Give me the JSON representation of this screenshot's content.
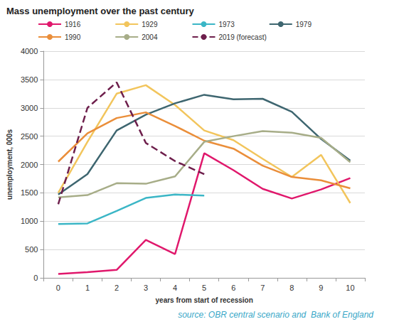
{
  "chart_data": {
    "type": "line",
    "title": "Mass unemployment over the past century",
    "x_label": "years from start of recession",
    "y_label": "unemployment, 000s",
    "source": "source: OBR central scenario and  Bank of England",
    "categories": [
      "0",
      "1",
      "2",
      "3",
      "4",
      "5",
      "6",
      "7",
      "8",
      "9",
      "10"
    ],
    "ylim": [
      0,
      4000
    ],
    "yticks": [
      0,
      500,
      1000,
      1500,
      2000,
      2500,
      3000,
      3500,
      4000
    ],
    "grid": true,
    "legend": "top",
    "series": [
      {
        "name": "1916",
        "color": "#e0186c",
        "line_style": "solid",
        "values": [
          70,
          100,
          140,
          670,
          420,
          2200,
          1900,
          1570,
          1400,
          1560,
          1760
        ]
      },
      {
        "name": "1929",
        "color": "#f2c55c",
        "line_style": "solid",
        "values": [
          1500,
          2400,
          3250,
          3400,
          3050,
          2600,
          2430,
          2100,
          1780,
          2170,
          1320
        ]
      },
      {
        "name": "1973",
        "color": "#3bb6c6",
        "line_style": "solid",
        "values": [
          950,
          960,
          1180,
          1410,
          1470,
          1450,
          null,
          null,
          null,
          null,
          null
        ]
      },
      {
        "name": "1979",
        "color": "#3e6670",
        "line_style": "solid",
        "values": [
          1470,
          1830,
          2600,
          2880,
          3080,
          3230,
          3150,
          3160,
          2930,
          2450,
          2070
        ]
      },
      {
        "name": "1990",
        "color": "#ea8e3a",
        "line_style": "solid",
        "values": [
          2050,
          2550,
          2820,
          2920,
          2680,
          2420,
          2280,
          1980,
          1780,
          1720,
          1580
        ]
      },
      {
        "name": "2004",
        "color": "#a7ad88",
        "line_style": "solid",
        "values": [
          1420,
          1460,
          1670,
          1660,
          1790,
          2400,
          2500,
          2590,
          2560,
          2470,
          2040
        ]
      },
      {
        "name": "2019 (forecast)",
        "color": "#6e1f4c",
        "line_style": "dashed",
        "values": [
          1300,
          3000,
          3450,
          2380,
          2060,
          1830,
          null,
          null,
          null,
          null,
          null
        ]
      }
    ]
  }
}
